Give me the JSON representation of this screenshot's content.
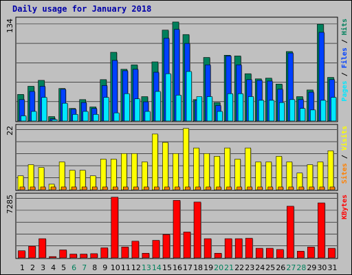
{
  "title": "Daily usage for January 2018",
  "colors": {
    "frame_bg": "#c0c0c0",
    "title": "#0000a8",
    "hits": "#00805c",
    "files": "#0040ff",
    "pages": "#00e8ff",
    "visits": "#ffff00",
    "sites": "#ff8000",
    "kbytes": "#ff0000",
    "weekend_label": "#00805c",
    "weekday_label": "#000000"
  },
  "chart_data": {
    "type": "bar",
    "categories": [
      "1",
      "2",
      "3",
      "4",
      "5",
      "6",
      "7",
      "8",
      "9",
      "10",
      "11",
      "12",
      "13",
      "14",
      "15",
      "16",
      "17",
      "18",
      "19",
      "20",
      "21",
      "22",
      "23",
      "24",
      "25",
      "26",
      "27",
      "28",
      "29",
      "30",
      "31"
    ],
    "weekend_days": [
      "6",
      "7",
      "13",
      "14",
      "20",
      "21",
      "27",
      "28"
    ],
    "panels": [
      {
        "id": "hits-files-pages",
        "ymax_label": "134",
        "ymax": 134,
        "legend": [
          {
            "text": "Pages",
            "color": "#00e8ff"
          },
          {
            "text": " / ",
            "color": "#000000"
          },
          {
            "text": "Files",
            "color": "#0040ff"
          },
          {
            "text": " / ",
            "color": "#000000"
          },
          {
            "text": "Hits",
            "color": "#00805c"
          }
        ],
        "series": [
          {
            "name": "Hits",
            "color": "#00805c",
            "values": [
              36,
              47,
              55,
              6,
              44,
              17,
              29,
              19,
              56,
              93,
              70,
              76,
              33,
              80,
              123,
              134,
              117,
              29,
              86,
              25,
              89,
              88,
              64,
              57,
              58,
              50,
              94,
              33,
              42,
              131,
              59
            ]
          },
          {
            "name": "Files",
            "color": "#0040ff",
            "values": [
              29,
              40,
              47,
              3,
              43,
              16,
              25,
              17,
              48,
              82,
              68,
              70,
              26,
              66,
              112,
              124,
              105,
              28,
              76,
              21,
              88,
              76,
              56,
              55,
              54,
              43,
              92,
              29,
              39,
              120,
              56
            ]
          },
          {
            "name": "Pages",
            "color": "#00e8ff",
            "values": [
              7,
              13,
              32,
              2,
              24,
              9,
              13,
              9,
              32,
              11,
              37,
              30,
              13,
              40,
              64,
              35,
              67,
              33,
              33,
              13,
              37,
              37,
              33,
              28,
              28,
              25,
              29,
              17,
              15,
              28,
              32
            ]
          }
        ]
      },
      {
        "id": "visits-sites",
        "ymax_label": "22",
        "ymax": 22,
        "legend": [
          {
            "text": "Sites",
            "color": "#ff8000"
          },
          {
            "text": " / ",
            "color": "#000000"
          },
          {
            "text": "Visits",
            "color": "#ffff00"
          }
        ],
        "series": [
          {
            "name": "Visits",
            "color": "#ffff00",
            "values": [
              5,
              9,
              8,
              2,
              10,
              7,
              7,
              5,
              11,
              11,
              13,
              13,
              10,
              20,
              17,
              13,
              22,
              15,
              13,
              12,
              15,
              11,
              15,
              10,
              10,
              12,
              10,
              6,
              9,
              10,
              14
            ]
          },
          {
            "name": "Sites",
            "color": "#ff8000",
            "values": [
              1,
              1,
              1,
              1,
              1,
              1,
              1,
              1,
              1,
              1,
              1,
              1,
              1,
              1,
              1,
              1,
              1,
              1,
              1,
              1,
              1,
              1,
              1,
              1,
              1,
              1,
              1,
              1,
              1,
              1,
              1
            ]
          }
        ]
      },
      {
        "id": "kbytes",
        "ymax_label": "7285",
        "ymax": 7285,
        "legend": [
          {
            "text": "KBytes",
            "color": "#ff0000"
          }
        ],
        "series": [
          {
            "name": "KBytes",
            "color": "#ff0000",
            "values": [
              850,
              1400,
              2300,
              150,
              950,
              450,
              450,
              500,
              1200,
              7285,
              1300,
              2000,
              550,
              2100,
              2800,
              6900,
              3100,
              6700,
              2300,
              550,
              2300,
              2300,
              2350,
              1150,
              1150,
              1000,
              6200,
              800,
              1300,
              6600,
              1150
            ]
          }
        ]
      }
    ]
  }
}
